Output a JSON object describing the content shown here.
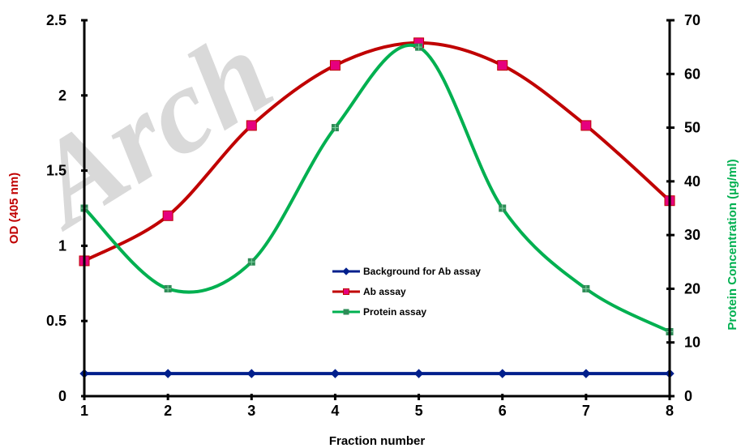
{
  "chart_data": {
    "type": "line",
    "watermark": "Arch",
    "x": [
      1,
      2,
      3,
      4,
      5,
      6,
      7,
      8
    ],
    "xlabel": "Fraction number",
    "ylabel": "OD (405 nm)",
    "y2label": "Protein  Concentration  (µg/ml)",
    "ylim": [
      0,
      2.5
    ],
    "y2lim": [
      0,
      70
    ],
    "y_ticks": [
      "0",
      "0.5",
      "1",
      "1.5",
      "2",
      "2.5"
    ],
    "y2_ticks": [
      "0",
      "10",
      "20",
      "30",
      "40",
      "50",
      "60",
      "70"
    ],
    "x_ticks": [
      "1",
      "2",
      "3",
      "4",
      "5",
      "6",
      "7",
      "8"
    ],
    "legend_position": "center",
    "colors": {
      "ylabel": "#c00000",
      "y2label": "#00b050"
    },
    "series": [
      {
        "name": "Background for Ab assay",
        "axis": "left",
        "color": "#001f8c",
        "marker": "diamond",
        "smooth": false,
        "values": [
          0.15,
          0.15,
          0.15,
          0.15,
          0.15,
          0.15,
          0.15,
          0.15
        ]
      },
      {
        "name": "Ab assay",
        "axis": "left",
        "color": "#c00000",
        "marker": "square",
        "marker_color": "#e6007e",
        "smooth": true,
        "values": [
          0.9,
          1.2,
          1.8,
          2.2,
          2.35,
          2.2,
          1.8,
          1.3
        ]
      },
      {
        "name": "Protein assay",
        "axis": "right",
        "color": "#00b050",
        "marker": "square",
        "marker_color": "#2e8b57",
        "smooth": true,
        "values": [
          35,
          20,
          25,
          50,
          65,
          35,
          20,
          12
        ]
      }
    ]
  }
}
